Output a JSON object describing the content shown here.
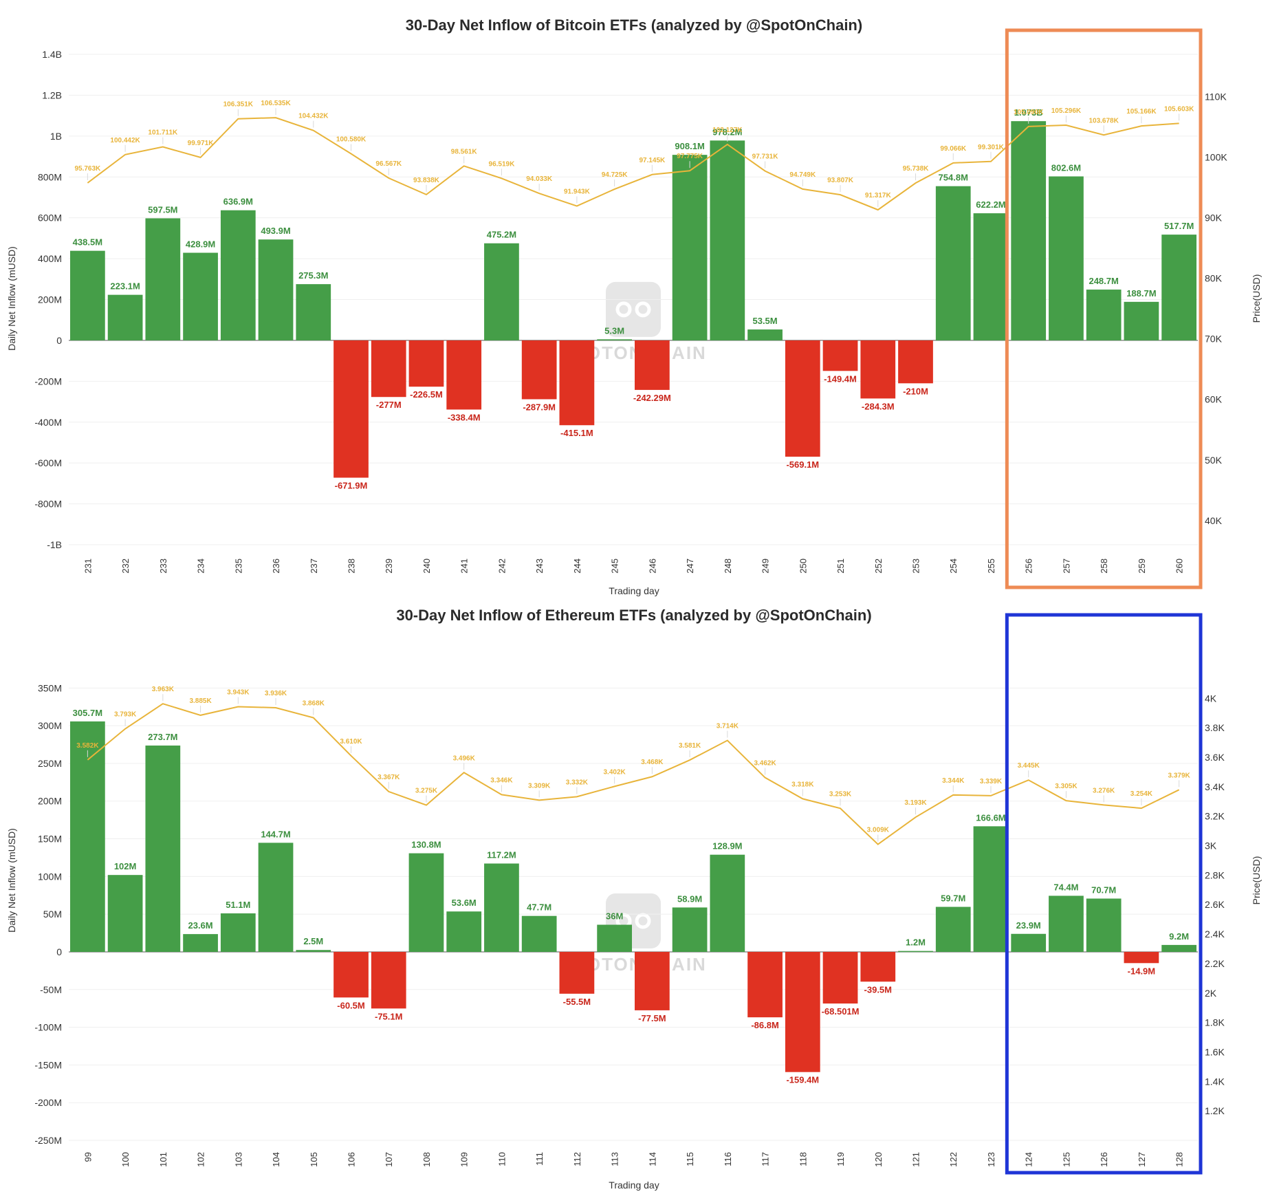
{
  "chart_data": [
    {
      "type": "bar",
      "title": "30-Day Net Inflow of Bitcoin ETFs (analyzed by @SpotOnChain)",
      "xlabel": "Trading day",
      "ylabel": "Daily Net Inflow (mUSD)",
      "y2label": "Price(USD)",
      "watermark": "SPOTONCHAIN",
      "ylim": [
        -1000,
        1400
      ],
      "yticks": [
        {
          "v": 1400,
          "label": "1.4B"
        },
        {
          "v": 1200,
          "label": "1.2B"
        },
        {
          "v": 1000,
          "label": "1B"
        },
        {
          "v": 800,
          "label": "800M"
        },
        {
          "v": 600,
          "label": "600M"
        },
        {
          "v": 400,
          "label": "400M"
        },
        {
          "v": 200,
          "label": "200M"
        },
        {
          "v": 0,
          "label": "0"
        },
        {
          "v": -200,
          "label": "-200M"
        },
        {
          "v": -400,
          "label": "-400M"
        },
        {
          "v": -600,
          "label": "-600M"
        },
        {
          "v": -800,
          "label": "-800M"
        },
        {
          "v": -1000,
          "label": "-1B"
        }
      ],
      "y2lim": [
        36000,
        117000
      ],
      "y2ticks": [
        {
          "v": 110000,
          "label": "110K"
        },
        {
          "v": 100000,
          "label": "100K"
        },
        {
          "v": 90000,
          "label": "90K"
        },
        {
          "v": 80000,
          "label": "80K"
        },
        {
          "v": 70000,
          "label": "70K"
        },
        {
          "v": 60000,
          "label": "60K"
        },
        {
          "v": 50000,
          "label": "50K"
        },
        {
          "v": 40000,
          "label": "40K"
        }
      ],
      "categories": [
        "231",
        "232",
        "233",
        "234",
        "235",
        "236",
        "237",
        "238",
        "239",
        "240",
        "241",
        "242",
        "243",
        "244",
        "245",
        "246",
        "247",
        "248",
        "249",
        "250",
        "251",
        "252",
        "253",
        "254",
        "255",
        "256",
        "257",
        "258",
        "259",
        "260"
      ],
      "values": [
        438.5,
        223.1,
        597.5,
        428.9,
        636.9,
        493.9,
        275.3,
        -671.9,
        -277,
        -226.5,
        -338.4,
        475.2,
        -287.9,
        -415.1,
        5.3,
        -242.29,
        908.1,
        978.2,
        53.5,
        -569.1,
        -149.4,
        -284.3,
        -210,
        754.8,
        622.2,
        1073,
        802.6,
        248.7,
        188.7,
        517.7
      ],
      "value_labels": [
        "438.5M",
        "223.1M",
        "597.5M",
        "428.9M",
        "636.9M",
        "493.9M",
        "275.3M",
        "-671.9M",
        "-277M",
        "-226.5M",
        "-338.4M",
        "475.2M",
        "-287.9M",
        "-415.1M",
        "5.3M",
        "-242.29M",
        "908.1M",
        "978.2M",
        "53.5M",
        "-569.1M",
        "-149.4M",
        "-284.3M",
        "-210M",
        "754.8M",
        "622.2M",
        "1.073B",
        "802.6M",
        "248.7M",
        "188.7M",
        "517.7M"
      ],
      "price": [
        95763,
        100442,
        101711,
        99971,
        106351,
        106535,
        104432,
        100580,
        96567,
        93838,
        98561,
        96519,
        94033,
        91943,
        94725,
        97145,
        97775,
        102127,
        97731,
        94749,
        93807,
        91317,
        95738,
        99066,
        99301,
        105090,
        105296,
        103678,
        105166,
        105603
      ],
      "price_labels": [
        "95.763K",
        "100.442K",
        "101.711K",
        "99.971K",
        "106.351K",
        "106.535K",
        "104.432K",
        "100.580K",
        "96.567K",
        "93.838K",
        "98.561K",
        "96.519K",
        "94.033K",
        "91.943K",
        "94.725K",
        "97.145K",
        "97.775K",
        "102.127K",
        "97.731K",
        "94.749K",
        "93.807K",
        "91.317K",
        "95.738K",
        "99.066K",
        "99.301K",
        "105.090K",
        "105.296K",
        "103.678K",
        "105.166K",
        "105.603K"
      ],
      "highlight": {
        "from_index": 25,
        "to_index": 29,
        "color": "#ee8b55"
      },
      "colors": {
        "positive": "#459e48",
        "negative": "#e03222",
        "price_line": "#e8b43a",
        "positive_label": "#3c8f3f",
        "negative_label": "#c9261b"
      }
    },
    {
      "type": "bar",
      "title": "30-Day Net Inflow of Ethereum ETFs (analyzed by @SpotOnChain)",
      "xlabel": "Trading day",
      "ylabel": "Daily Net Inflow (mUSD)",
      "y2label": "Price(USD)",
      "watermark": "SPOTONCHAIN",
      "ylim": [
        -250,
        395
      ],
      "yticks": [
        {
          "v": 350,
          "label": "350M"
        },
        {
          "v": 300,
          "label": "300M"
        },
        {
          "v": 250,
          "label": "250M"
        },
        {
          "v": 200,
          "label": "200M"
        },
        {
          "v": 150,
          "label": "150M"
        },
        {
          "v": 100,
          "label": "100M"
        },
        {
          "v": 50,
          "label": "50M"
        },
        {
          "v": 0,
          "label": "0"
        },
        {
          "v": -50,
          "label": "-50M"
        },
        {
          "v": -100,
          "label": "-100M"
        },
        {
          "v": -150,
          "label": "-150M"
        },
        {
          "v": -200,
          "label": "-200M"
        },
        {
          "v": -250,
          "label": "-250M"
        }
      ],
      "y2lim": [
        1000,
        4300
      ],
      "y2ticks": [
        {
          "v": 4000,
          "label": "4K"
        },
        {
          "v": 3800,
          "label": "3.8K"
        },
        {
          "v": 3600,
          "label": "3.6K"
        },
        {
          "v": 3400,
          "label": "3.4K"
        },
        {
          "v": 3200,
          "label": "3.2K"
        },
        {
          "v": 3000,
          "label": "3K"
        },
        {
          "v": 2800,
          "label": "2.8K"
        },
        {
          "v": 2600,
          "label": "2.6K"
        },
        {
          "v": 2400,
          "label": "2.4K"
        },
        {
          "v": 2200,
          "label": "2.2K"
        },
        {
          "v": 2000,
          "label": "2K"
        },
        {
          "v": 1800,
          "label": "1.8K"
        },
        {
          "v": 1600,
          "label": "1.6K"
        },
        {
          "v": 1400,
          "label": "1.4K"
        },
        {
          "v": 1200,
          "label": "1.2K"
        }
      ],
      "categories": [
        "99",
        "100",
        "101",
        "102",
        "103",
        "104",
        "105",
        "106",
        "107",
        "108",
        "109",
        "110",
        "111",
        "112",
        "113",
        "114",
        "115",
        "116",
        "117",
        "118",
        "119",
        "120",
        "121",
        "122",
        "123",
        "124",
        "125",
        "126",
        "127",
        "128"
      ],
      "values": [
        305.7,
        102,
        273.7,
        23.6,
        51.1,
        144.7,
        2.5,
        -60.5,
        -75.1,
        130.8,
        53.6,
        117.2,
        47.7,
        -55.5,
        36,
        -77.5,
        58.9,
        128.9,
        -86.8,
        -159.4,
        -68.501,
        -39.5,
        1.2,
        59.7,
        166.6,
        23.9,
        74.4,
        70.7,
        -14.9,
        9.2
      ],
      "value_labels": [
        "305.7M",
        "102M",
        "273.7M",
        "23.6M",
        "51.1M",
        "144.7M",
        "2.5M",
        "-60.5M",
        "-75.1M",
        "130.8M",
        "53.6M",
        "117.2M",
        "47.7M",
        "-55.5M",
        "36M",
        "-77.5M",
        "58.9M",
        "128.9M",
        "-86.8M",
        "-159.4M",
        "-68.501M",
        "-39.5M",
        "1.2M",
        "59.7M",
        "166.6M",
        "23.9M",
        "74.4M",
        "70.7M",
        "-14.9M",
        "9.2M"
      ],
      "price": [
        3582,
        3793,
        3963,
        3885,
        3943,
        3936,
        3868,
        3610,
        3367,
        3275,
        3496,
        3346,
        3309,
        3332,
        3402,
        3468,
        3581,
        3714,
        3462,
        3318,
        3253,
        3009,
        3193,
        3344,
        3339,
        3445,
        3305,
        3276,
        3254,
        3379
      ],
      "price_labels": [
        "3.582K",
        "3.793K",
        "3.963K",
        "3.885K",
        "3.943K",
        "3.936K",
        "3.868K",
        "3.610K",
        "3.367K",
        "3.275K",
        "3.496K",
        "3.346K",
        "3.309K",
        "3.332K",
        "3.402K",
        "3.468K",
        "3.581K",
        "3.714K",
        "3.462K",
        "3.318K",
        "3.253K",
        "3.009K",
        "3.193K",
        "3.344K",
        "3.339K",
        "3.445K",
        "3.305K",
        "3.276K",
        "3.254K",
        "3.379K"
      ],
      "highlight": {
        "from_index": 25,
        "to_index": 29,
        "color": "#1f35d6"
      },
      "colors": {
        "positive": "#459e48",
        "negative": "#e03222",
        "price_line": "#e8b43a",
        "positive_label": "#3c8f3f",
        "negative_label": "#c9261b"
      }
    }
  ]
}
